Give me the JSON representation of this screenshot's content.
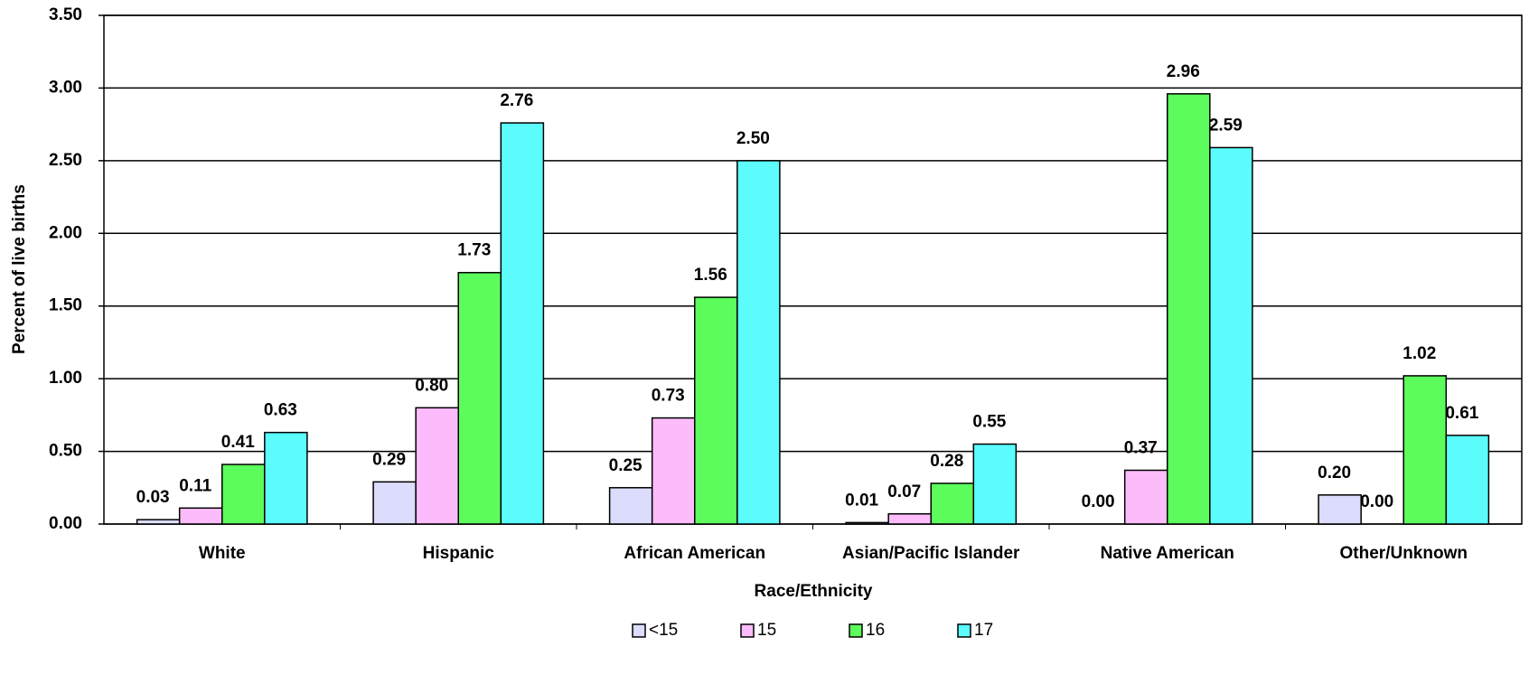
{
  "chart_data": {
    "type": "bar",
    "x_label": "Race/Ethnicity",
    "y_label": "Percent of live births",
    "categories": [
      "White",
      "Hispanic",
      "African American",
      "Asian/Pacific Islander",
      "Native American",
      "Other/Unknown"
    ],
    "series": [
      {
        "name": "<15",
        "color": "#dcdcfc",
        "values": [
          0.03,
          0.29,
          0.25,
          0.01,
          0,
          0.2
        ],
        "value_labels": [
          "0.03",
          "0.29",
          "0.25",
          "0.01",
          "0.00",
          "0.20"
        ]
      },
      {
        "name": "15",
        "color": "#fcbcfc",
        "values": [
          0.11,
          0.8,
          0.73,
          0.07,
          0.37,
          0
        ],
        "value_labels": [
          "0.11",
          "0.80",
          "0.73",
          "0.07",
          "0.37",
          "0.00"
        ]
      },
      {
        "name": "16",
        "color": "#5cfc5c",
        "values": [
          0.41,
          1.73,
          1.56,
          0.28,
          2.96,
          1.02
        ],
        "value_labels": [
          "0.41",
          "1.73",
          "1.56",
          "0.28",
          "2.96",
          "1.02"
        ]
      },
      {
        "name": "17",
        "color": "#5cfcfc",
        "values": [
          0.63,
          2.76,
          2.5,
          0.55,
          2.59,
          0.61
        ],
        "value_labels": [
          "0.63",
          "2.76",
          "2.50",
          "0.55",
          "2.59",
          "0.61"
        ]
      }
    ],
    "ylim": [
      0,
      3.5
    ],
    "yticks": [
      {
        "value": 0,
        "label": "0.00"
      },
      {
        "value": 0.5,
        "label": "0.50"
      },
      {
        "value": 1,
        "label": "1.00"
      },
      {
        "value": 1.5,
        "label": "1.50"
      },
      {
        "value": 2,
        "label": "2.00"
      },
      {
        "value": 2.5,
        "label": "2.50"
      },
      {
        "value": 3,
        "label": "3.00"
      },
      {
        "value": 3.5,
        "label": "3.50"
      }
    ],
    "grid": true
  }
}
